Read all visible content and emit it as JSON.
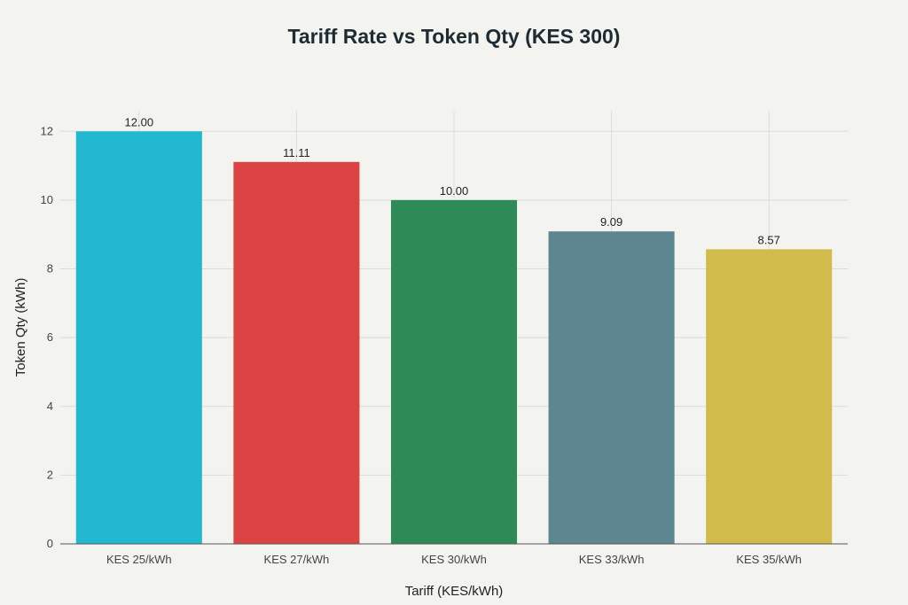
{
  "chart_data": {
    "type": "bar",
    "title": "Tariff Rate vs Token Qty (KES 300)",
    "xlabel": "Tariff (KES/kWh)",
    "ylabel": "Token Qty (kWh)",
    "categories": [
      "KES 25/kWh",
      "KES 27/kWh",
      "KES 30/kWh",
      "KES 33/kWh",
      "KES 35/kWh"
    ],
    "values": [
      12.0,
      11.11,
      10.0,
      9.09,
      8.57
    ],
    "value_labels": [
      "12.00",
      "11.11",
      "10.00",
      "9.09",
      "8.57"
    ],
    "colors": [
      "#22b8cf",
      "#dc4444",
      "#2e8b57",
      "#5e8690",
      "#d1bb4b"
    ],
    "ylim": [
      0,
      12.6
    ],
    "yticks": [
      0,
      2,
      4,
      6,
      8,
      10,
      12
    ],
    "grid": true,
    "legend": "none"
  }
}
